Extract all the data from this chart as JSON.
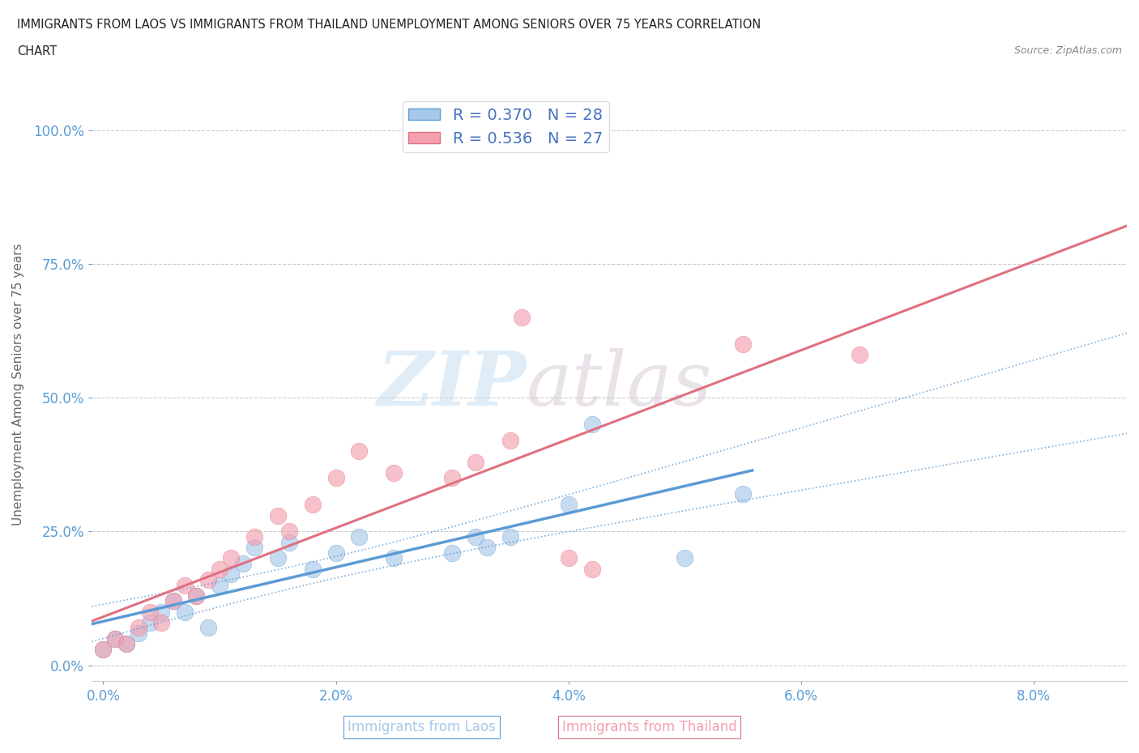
{
  "title_line1": "IMMIGRANTS FROM LAOS VS IMMIGRANTS FROM THAILAND UNEMPLOYMENT AMONG SENIORS OVER 75 YEARS CORRELATION",
  "title_line2": "CHART",
  "source": "Source: ZipAtlas.com",
  "ylabel": "Unemployment Among Seniors over 75 years",
  "xlabel_ticks": [
    "0.0%",
    "2.0%",
    "4.0%",
    "6.0%",
    "8.0%"
  ],
  "xlabel_vals": [
    0.0,
    0.02,
    0.04,
    0.06,
    0.08
  ],
  "ylabel_ticks": [
    "0.0%",
    "25.0%",
    "50.0%",
    "75.0%",
    "100.0%"
  ],
  "ylabel_vals": [
    0.0,
    0.25,
    0.5,
    0.75,
    1.0
  ],
  "xlim": [
    -0.001,
    0.088
  ],
  "ylim": [
    -0.03,
    1.08
  ],
  "laos_color": "#a8c8e8",
  "thailand_color": "#f4a0b0",
  "laos_R": 0.37,
  "laos_N": 28,
  "thailand_R": 0.536,
  "thailand_N": 27,
  "laos_x": [
    0.0,
    0.001,
    0.002,
    0.003,
    0.004,
    0.005,
    0.006,
    0.007,
    0.008,
    0.009,
    0.01,
    0.011,
    0.012,
    0.013,
    0.015,
    0.016,
    0.018,
    0.02,
    0.022,
    0.025,
    0.03,
    0.032,
    0.033,
    0.035,
    0.04,
    0.042,
    0.05,
    0.055
  ],
  "laos_y": [
    0.03,
    0.05,
    0.04,
    0.06,
    0.08,
    0.1,
    0.12,
    0.1,
    0.13,
    0.07,
    0.15,
    0.17,
    0.19,
    0.22,
    0.2,
    0.23,
    0.18,
    0.21,
    0.24,
    0.2,
    0.21,
    0.24,
    0.22,
    0.24,
    0.3,
    0.45,
    0.2,
    0.32
  ],
  "thailand_x": [
    0.0,
    0.001,
    0.002,
    0.003,
    0.004,
    0.005,
    0.006,
    0.007,
    0.008,
    0.009,
    0.01,
    0.011,
    0.013,
    0.015,
    0.016,
    0.018,
    0.02,
    0.022,
    0.025,
    0.03,
    0.032,
    0.035,
    0.036,
    0.04,
    0.042,
    0.055,
    0.065
  ],
  "thailand_y": [
    0.03,
    0.05,
    0.04,
    0.07,
    0.1,
    0.08,
    0.12,
    0.15,
    0.13,
    0.16,
    0.18,
    0.2,
    0.24,
    0.28,
    0.25,
    0.3,
    0.35,
    0.4,
    0.36,
    0.35,
    0.38,
    0.42,
    0.65,
    0.2,
    0.18,
    0.6,
    0.58
  ],
  "watermark_zip": "ZIP",
  "watermark_atlas": "atlas",
  "background_color": "#ffffff",
  "grid_color": "#cccccc",
  "laos_line_color": "#5b9bd5",
  "thailand_line_color": "#e07080",
  "legend_text_color": "#4472c4",
  "tick_color": "#5b9bd5",
  "label_color": "#666666"
}
